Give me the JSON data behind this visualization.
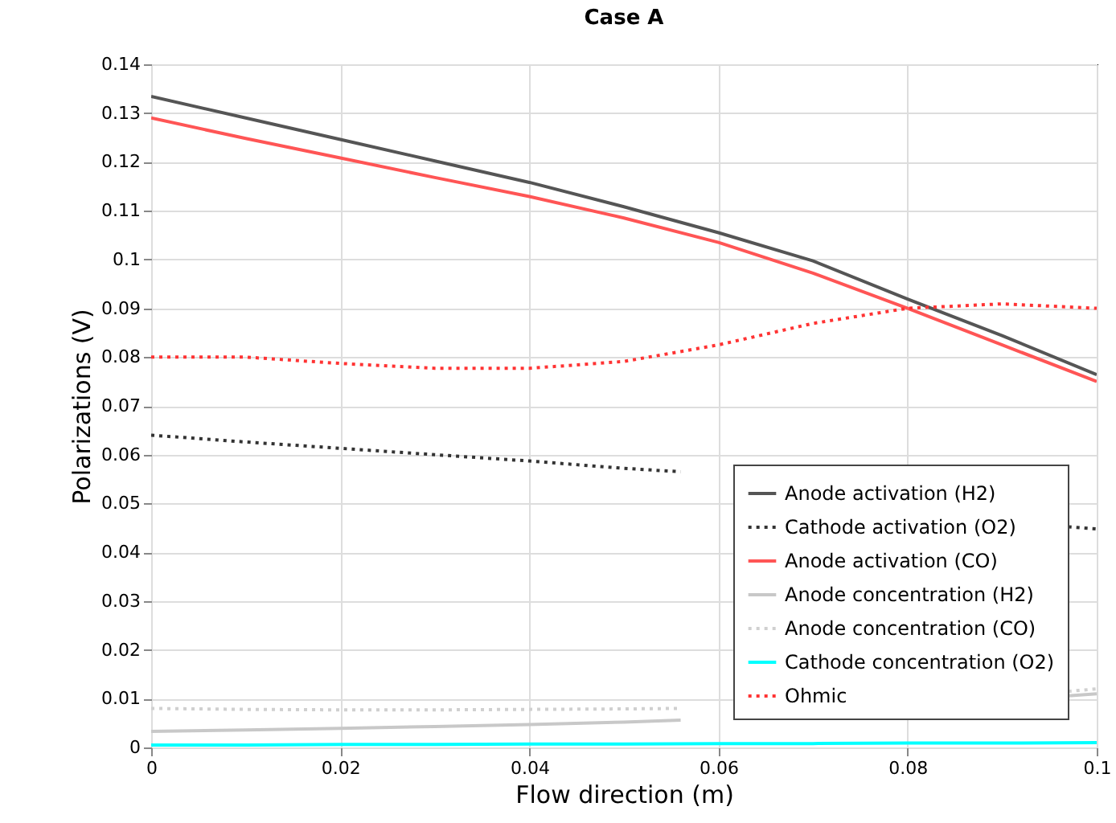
{
  "chart_data": {
    "type": "line",
    "title": "Case A",
    "xlabel": "Flow direction (m)",
    "ylabel": "Polarizations (V)",
    "x": [
      0,
      0.01,
      0.02,
      0.03,
      0.04,
      0.05,
      0.06,
      0.07,
      0.08,
      0.09,
      0.1
    ],
    "xlim": [
      0,
      0.1
    ],
    "xticks": [
      0,
      0.02,
      0.04,
      0.06,
      0.08,
      0.1
    ],
    "ylim": [
      0,
      0.14
    ],
    "yticks": [
      0,
      0.01,
      0.02,
      0.03,
      0.04,
      0.05,
      0.06,
      0.07,
      0.08,
      0.09,
      0.1,
      0.11,
      0.12,
      0.13,
      0.14
    ],
    "grid": true,
    "legend": "bottom right",
    "series": [
      {
        "name": "Anode activation (H2)",
        "color": "#555555",
        "line_style": "solid",
        "values": [
          0.1334,
          0.129,
          0.1246,
          0.1202,
          0.1158,
          0.1108,
          0.1055,
          0.0997,
          0.0919,
          0.0844,
          0.0764
        ]
      },
      {
        "name": "Cathode activation (O2)",
        "color": "#333333",
        "line_style": "dotted",
        "x": [
          0,
          0.01,
          0.02,
          0.03,
          0.04,
          0.05,
          0.056,
          0.075,
          0.097,
          0.1
        ],
        "values": [
          0.064,
          0.0626,
          0.0613,
          0.06,
          0.0587,
          0.0572,
          0.0565,
          null,
          0.0452,
          0.0448
        ]
      },
      {
        "name": "Anode activation (CO)",
        "color": "#ff5555",
        "line_style": "solid",
        "values": [
          0.129,
          0.1248,
          0.1208,
          0.1168,
          0.1129,
          0.1085,
          0.1035,
          0.0972,
          0.09,
          0.0825,
          0.075
        ]
      },
      {
        "name": "Anode concentration (H2)",
        "color": "#c8c8c8",
        "line_style": "solid",
        "x": [
          0,
          0.01,
          0.02,
          0.03,
          0.04,
          0.05,
          0.056,
          0.075,
          0.097,
          0.1
        ],
        "values": [
          0.0033,
          0.0036,
          0.0039,
          0.0043,
          0.0047,
          0.0052,
          0.0056,
          null,
          0.0106,
          0.011
        ]
      },
      {
        "name": "Anode concentration (CO)",
        "color": "#d0d0d0",
        "line_style": "dotted",
        "x": [
          0,
          0.01,
          0.02,
          0.03,
          0.04,
          0.05,
          0.056,
          0.075,
          0.097,
          0.1
        ],
        "values": [
          0.008,
          0.0078,
          0.0077,
          0.0077,
          0.0078,
          0.0079,
          0.008,
          null,
          0.0115,
          0.012
        ]
      },
      {
        "name": "Cathode concentration (O2)",
        "color": "#00ffff",
        "line_style": "solid",
        "values": [
          0.0005,
          0.0005,
          0.0006,
          0.0006,
          0.0007,
          0.0007,
          0.0008,
          0.0008,
          0.0009,
          0.0009,
          0.001
        ]
      },
      {
        "name": "Ohmic",
        "color": "#ff3333",
        "line_style": "dotted",
        "values": [
          0.08,
          0.08,
          0.0787,
          0.0777,
          0.0777,
          0.0791,
          0.0825,
          0.0869,
          0.09,
          0.0909,
          0.09
        ]
      }
    ]
  }
}
